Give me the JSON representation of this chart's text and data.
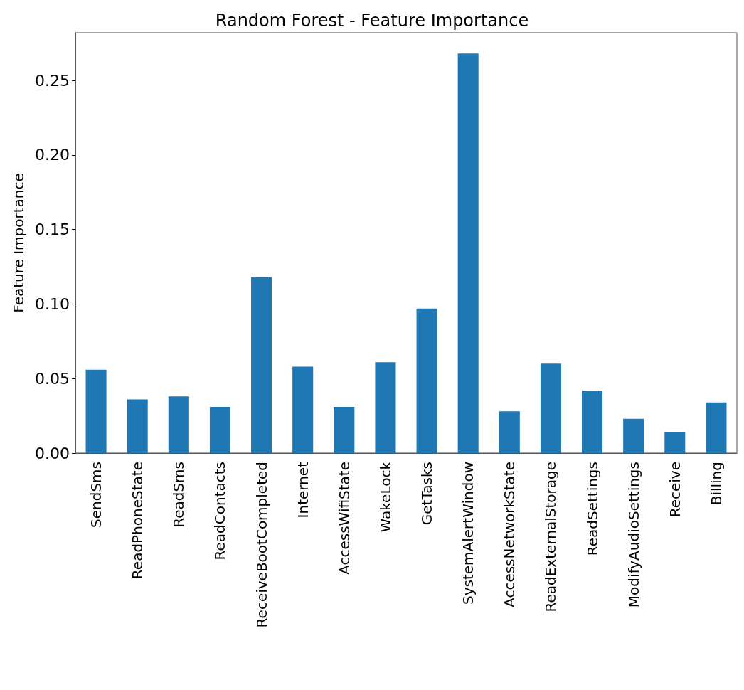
{
  "chart_data": {
    "type": "bar",
    "title": "Random Forest - Feature Importance",
    "ylabel": "Feature Importance",
    "categories": [
      "SendSms",
      "ReadPhoneState",
      "ReadSms",
      "ReadContacts",
      "ReceiveBootCompleted",
      "Internet",
      "AccessWifiState",
      "WakeLock",
      "GetTasks",
      "SystemAlertWindow",
      "AccessNetworkState",
      "ReadExternalStorage",
      "ReadSettings",
      "ModifyAudioSettings",
      "Receive",
      "Billing"
    ],
    "values": [
      0.056,
      0.036,
      0.038,
      0.031,
      0.118,
      0.058,
      0.031,
      0.061,
      0.097,
      0.268,
      0.028,
      0.06,
      0.042,
      0.023,
      0.014,
      0.034
    ],
    "color": "#1f77b4",
    "ylim": [
      0,
      0.282
    ],
    "yticks": [
      {
        "value": 0,
        "label": "0.00"
      },
      {
        "value": 0.05,
        "label": "0.05"
      },
      {
        "value": 0.1,
        "label": "0.10"
      },
      {
        "value": 0.15,
        "label": "0.15"
      },
      {
        "value": 0.2,
        "label": "0.20"
      },
      {
        "value": 0.25,
        "label": "0.25"
      }
    ],
    "grid": false
  }
}
